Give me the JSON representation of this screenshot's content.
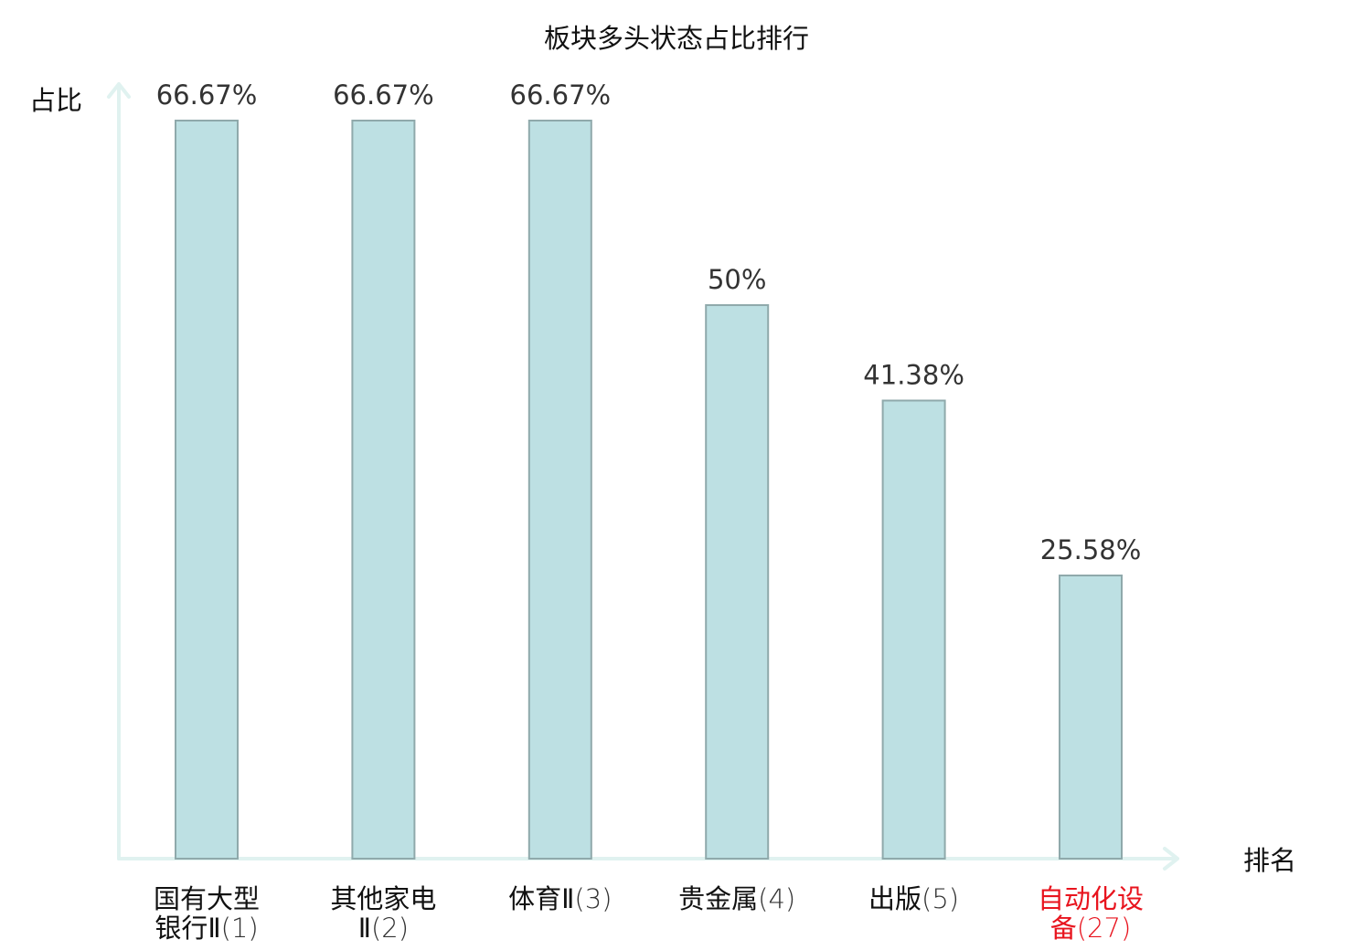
{
  "chart_data": {
    "type": "bar",
    "title": "板块多头状态占比排行",
    "ylabel": "占比",
    "xlabel": "排名",
    "ylim": [
      0,
      70
    ],
    "grid": false,
    "legend": "none",
    "bar_color": "#bde0e3",
    "bar_edge_color": "#8fa9ab",
    "axis_color": "#e0f2f0",
    "highlight_color": "#e8141e",
    "categories": [
      {
        "name_lines": [
          "国有大型",
          "银行Ⅱ"
        ],
        "rank": "(1)",
        "highlight": false
      },
      {
        "name_lines": [
          "其他家电",
          "Ⅱ"
        ],
        "rank": "(2)",
        "highlight": false
      },
      {
        "name_lines": [
          "体育Ⅱ"
        ],
        "rank": "(3)",
        "highlight": false
      },
      {
        "name_lines": [
          "贵金属"
        ],
        "rank": "(4)",
        "highlight": false
      },
      {
        "name_lines": [
          "出版"
        ],
        "rank": "(5)",
        "highlight": false
      },
      {
        "name_lines": [
          "自动化设",
          "备"
        ],
        "rank": "(27)",
        "highlight": true
      }
    ],
    "values": [
      66.67,
      66.67,
      66.67,
      50,
      41.38,
      25.58
    ],
    "value_labels": [
      "66.67%",
      "66.67%",
      "66.67%",
      "50%",
      "41.38%",
      "25.58%"
    ]
  }
}
